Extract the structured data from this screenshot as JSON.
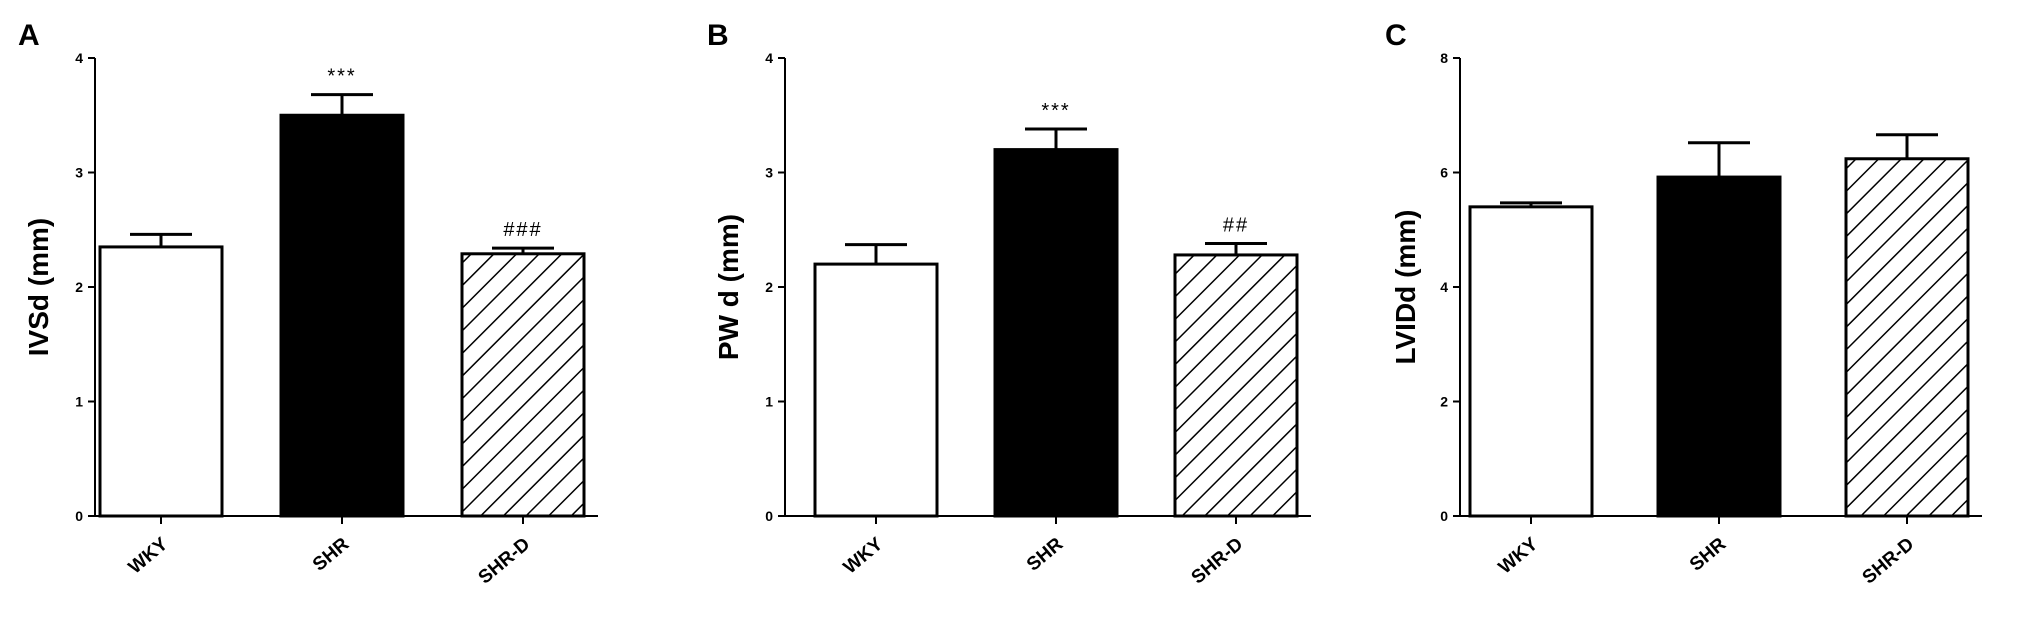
{
  "chart_data": [
    {
      "panel": "A",
      "type": "bar",
      "ylabel": "IVSd (mm)",
      "ylim": [
        0,
        4
      ],
      "yticks": [
        "0",
        "1",
        "2",
        "3",
        "4"
      ],
      "categories": [
        "WKY",
        "SHR",
        "SHR-D"
      ],
      "values": [
        2.35,
        3.5,
        2.29
      ],
      "errors": [
        0.11,
        0.18,
        0.05
      ],
      "annotations": [
        "",
        "***",
        "###"
      ],
      "bar_styles": [
        "open",
        "solid",
        "hatched"
      ]
    },
    {
      "panel": "B",
      "type": "bar",
      "ylabel": "PW d (mm)",
      "ylim": [
        0,
        4
      ],
      "yticks": [
        "0",
        "1",
        "2",
        "3",
        "4"
      ],
      "categories": [
        "WKY",
        "SHR",
        "SHR-D"
      ],
      "values": [
        2.2,
        3.2,
        2.28
      ],
      "errors": [
        0.17,
        0.18,
        0.1
      ],
      "annotations": [
        "",
        "***",
        "##"
      ],
      "bar_styles": [
        "open",
        "solid",
        "hatched"
      ]
    },
    {
      "panel": "C",
      "type": "bar",
      "ylabel": "LVIDd (mm)",
      "ylim": [
        0,
        8
      ],
      "yticks": [
        "0",
        "2",
        "4",
        "6",
        "8"
      ],
      "categories": [
        "WKY",
        "SHR",
        "SHR-D"
      ],
      "values": [
        5.4,
        5.92,
        6.24
      ],
      "errors": [
        0.07,
        0.6,
        0.42
      ],
      "annotations": [
        "",
        "",
        ""
      ],
      "bar_styles": [
        "open",
        "solid",
        "hatched"
      ]
    }
  ]
}
